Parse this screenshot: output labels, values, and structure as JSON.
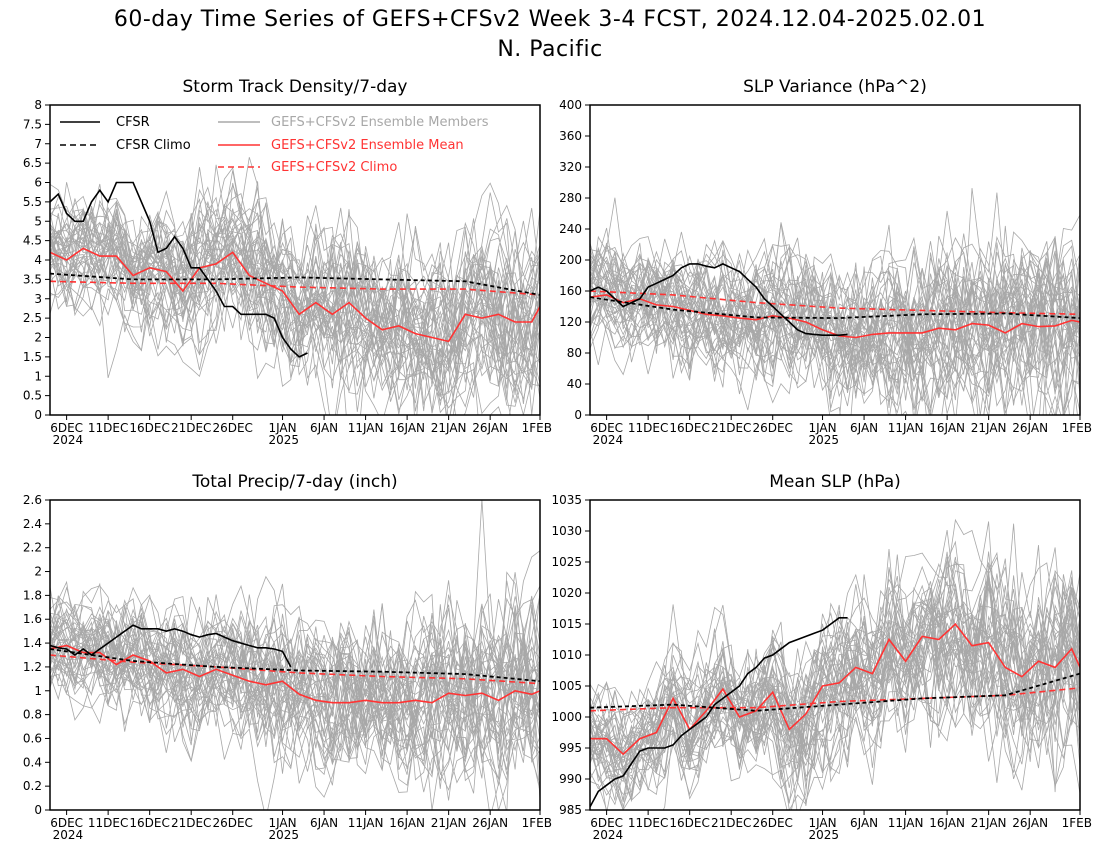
{
  "figure": {
    "title": "60-day Time Series of GEFS+CFSv2 Week 3-4 FCST, 2024.12.04-2025.02.01",
    "subtitle": "N. Pacific"
  },
  "colors": {
    "cfsr": "#000000",
    "members": "#a8a8a8",
    "ens_mean": "#ff3333"
  },
  "legend": {
    "cfsr": "CFSR",
    "cfsr_climo": "CFSR Climo",
    "members": "GEFS+CFSv2 Ensemble Members",
    "ens_mean": "GEFS+CFSv2 Ensemble Mean",
    "gefs_climo": "GEFS+CFSv2 Climo"
  },
  "x_axis": {
    "ticks": [
      {
        "day": 2,
        "label": "6DEC",
        "sub": "2024"
      },
      {
        "day": 7,
        "label": "11DEC",
        "sub": ""
      },
      {
        "day": 12,
        "label": "16DEC",
        "sub": ""
      },
      {
        "day": 17,
        "label": "21DEC",
        "sub": ""
      },
      {
        "day": 22,
        "label": "26DEC",
        "sub": ""
      },
      {
        "day": 28,
        "label": "1JAN",
        "sub": "2025"
      },
      {
        "day": 33,
        "label": "6JAN",
        "sub": ""
      },
      {
        "day": 38,
        "label": "11JAN",
        "sub": ""
      },
      {
        "day": 43,
        "label": "16JAN",
        "sub": ""
      },
      {
        "day": 48,
        "label": "21JAN",
        "sub": ""
      },
      {
        "day": 53,
        "label": "26JAN",
        "sub": ""
      },
      {
        "day": 59,
        "label": "1FEB",
        "sub": ""
      }
    ],
    "range": [
      0,
      59
    ]
  },
  "chart_data": [
    {
      "type": "line",
      "title": "Storm Track Density/7-day",
      "ylim": [
        0,
        8
      ],
      "yticks": [
        "0",
        "0.5",
        "1",
        "1.5",
        "2",
        "2.5",
        "3",
        "3.5",
        "4",
        "4.5",
        "5",
        "5.5",
        "6",
        "6.5",
        "7",
        "7.5",
        "8"
      ],
      "cfsr": {
        "x": [
          0,
          1,
          2,
          3,
          4,
          5,
          6,
          7,
          8,
          9,
          10,
          11,
          12,
          13,
          14,
          15,
          16,
          17,
          18,
          19,
          20,
          21,
          22,
          23,
          24,
          25,
          26,
          27,
          28,
          29,
          30,
          31
        ],
        "y": [
          5.5,
          5.7,
          5.2,
          5.0,
          5.0,
          5.5,
          5.8,
          5.5,
          6.0,
          6.0,
          6.0,
          5.5,
          5.0,
          4.2,
          4.3,
          4.6,
          4.3,
          3.8,
          3.8,
          3.5,
          3.2,
          2.8,
          2.8,
          2.6,
          2.6,
          2.6,
          2.6,
          2.5,
          2.0,
          1.7,
          1.5,
          1.6
        ]
      },
      "cfsr_climo": {
        "x": [
          0,
          10,
          20,
          30,
          40,
          50,
          59
        ],
        "y": [
          3.65,
          3.5,
          3.5,
          3.55,
          3.5,
          3.45,
          3.1
        ]
      },
      "ens_mean": {
        "x": [
          0,
          2,
          4,
          6,
          8,
          10,
          12,
          14,
          16,
          18,
          20,
          22,
          24,
          26,
          28,
          30,
          32,
          34,
          36,
          38,
          40,
          42,
          44,
          46,
          48,
          50,
          52,
          54,
          56,
          58,
          59
        ],
        "y": [
          4.2,
          4.0,
          4.3,
          4.1,
          4.1,
          3.6,
          3.8,
          3.7,
          3.2,
          3.8,
          3.9,
          4.2,
          3.6,
          3.4,
          3.2,
          2.6,
          2.9,
          2.6,
          2.9,
          2.5,
          2.2,
          2.3,
          2.1,
          2.0,
          1.9,
          2.6,
          2.5,
          2.6,
          2.4,
          2.4,
          2.8
        ]
      },
      "gefs_climo": {
        "x": [
          0,
          10,
          20,
          30,
          40,
          50,
          59
        ],
        "y": [
          3.45,
          3.4,
          3.4,
          3.3,
          3.25,
          3.25,
          3.1
        ]
      }
    },
    {
      "type": "line",
      "title": "SLP Variance (hPa^2)",
      "ylim": [
        0,
        400
      ],
      "yticks": [
        "0",
        "40",
        "80",
        "120",
        "160",
        "200",
        "240",
        "280",
        "320",
        "360",
        "400"
      ],
      "cfsr": {
        "x": [
          0,
          1,
          2,
          3,
          4,
          5,
          6,
          7,
          8,
          9,
          10,
          11,
          12,
          13,
          14,
          15,
          16,
          17,
          18,
          19,
          20,
          21,
          22,
          23,
          24,
          25,
          26,
          27,
          28,
          29,
          30,
          31
        ],
        "y": [
          160,
          165,
          160,
          150,
          140,
          145,
          150,
          165,
          170,
          175,
          180,
          190,
          195,
          195,
          192,
          190,
          195,
          190,
          185,
          175,
          165,
          150,
          140,
          130,
          120,
          110,
          105,
          104,
          103,
          103,
          103,
          104
        ]
      },
      "cfsr_climo": {
        "x": [
          0,
          10,
          20,
          30,
          40,
          50,
          59
        ],
        "y": [
          152,
          136,
          126,
          125,
          130,
          131,
          125
        ]
      },
      "ens_mean": {
        "x": [
          0,
          2,
          4,
          6,
          8,
          10,
          12,
          14,
          16,
          18,
          20,
          22,
          24,
          26,
          28,
          30,
          32,
          34,
          36,
          38,
          40,
          42,
          44,
          46,
          48,
          50,
          52,
          54,
          56,
          58,
          59
        ],
        "y": [
          152,
          155,
          145,
          150,
          142,
          140,
          135,
          130,
          128,
          125,
          123,
          128,
          125,
          120,
          110,
          102,
          100,
          104,
          106,
          106,
          106,
          112,
          110,
          118,
          116,
          106,
          118,
          114,
          115,
          122,
          120
        ]
      },
      "gefs_climo": {
        "x": [
          0,
          10,
          20,
          30,
          40,
          50,
          59
        ],
        "y": [
          160,
          155,
          145,
          138,
          135,
          132,
          130
        ]
      }
    },
    {
      "type": "line",
      "title": "Total Precip/7-day (inch)",
      "ylim": [
        0,
        2.6
      ],
      "yticks": [
        "0",
        "0.2",
        "0.4",
        "0.6",
        "0.8",
        "1",
        "1.2",
        "1.4",
        "1.6",
        "1.8",
        "2",
        "2.2",
        "2.4",
        "2.6"
      ],
      "cfsr": {
        "x": [
          0,
          1,
          2,
          3,
          4,
          5,
          6,
          7,
          8,
          9,
          10,
          11,
          12,
          13,
          14,
          15,
          16,
          17,
          18,
          19,
          20,
          21,
          22,
          23,
          24,
          25,
          26,
          27,
          28,
          29
        ],
        "y": [
          1.38,
          1.36,
          1.35,
          1.3,
          1.35,
          1.3,
          1.35,
          1.4,
          1.45,
          1.5,
          1.55,
          1.52,
          1.52,
          1.52,
          1.5,
          1.52,
          1.5,
          1.47,
          1.45,
          1.47,
          1.48,
          1.45,
          1.42,
          1.4,
          1.38,
          1.36,
          1.36,
          1.35,
          1.33,
          1.2
        ]
      },
      "cfsr_climo": {
        "x": [
          0,
          10,
          20,
          30,
          40,
          50,
          59
        ],
        "y": [
          1.35,
          1.25,
          1.2,
          1.17,
          1.16,
          1.14,
          1.08
        ]
      },
      "ens_mean": {
        "x": [
          0,
          2,
          4,
          6,
          8,
          10,
          12,
          14,
          16,
          18,
          20,
          22,
          24,
          26,
          28,
          30,
          32,
          34,
          36,
          38,
          40,
          42,
          44,
          46,
          48,
          50,
          52,
          54,
          56,
          58,
          59
        ],
        "y": [
          1.35,
          1.38,
          1.32,
          1.32,
          1.22,
          1.3,
          1.25,
          1.15,
          1.18,
          1.12,
          1.18,
          1.13,
          1.08,
          1.05,
          1.08,
          0.97,
          0.92,
          0.9,
          0.9,
          0.92,
          0.9,
          0.9,
          0.92,
          0.9,
          0.98,
          0.96,
          0.98,
          0.92,
          1.0,
          0.97,
          1.0
        ]
      },
      "gefs_climo": {
        "x": [
          0,
          10,
          20,
          30,
          40,
          50,
          59
        ],
        "y": [
          1.3,
          1.24,
          1.2,
          1.15,
          1.12,
          1.1,
          1.06
        ]
      }
    },
    {
      "type": "line",
      "title": "Mean SLP (hPa)",
      "ylim": [
        985,
        1035
      ],
      "yticks": [
        "985",
        "990",
        "995",
        "1000",
        "1005",
        "1010",
        "1015",
        "1020",
        "1025",
        "1030",
        "1035"
      ],
      "cfsr": {
        "x": [
          0,
          1,
          2,
          3,
          4,
          5,
          6,
          7,
          8,
          9,
          10,
          11,
          12,
          13,
          14,
          15,
          16,
          17,
          18,
          19,
          20,
          21,
          22,
          23,
          24,
          25,
          26,
          27,
          28,
          29,
          30,
          31
        ],
        "y": [
          985.5,
          988,
          989,
          990,
          990.5,
          992.5,
          994.5,
          995,
          995,
          995,
          995.5,
          997,
          998,
          999,
          1000,
          1002,
          1003,
          1004,
          1005,
          1007,
          1008,
          1009.5,
          1010,
          1011,
          1012,
          1012.5,
          1013,
          1013.5,
          1014,
          1015,
          1016,
          1016
        ]
      },
      "cfsr_climo": {
        "x": [
          0,
          10,
          20,
          30,
          40,
          50,
          59
        ],
        "y": [
          1001.5,
          1002,
          1001,
          1002,
          1003,
          1003.5,
          1007
        ]
      },
      "ens_mean": {
        "x": [
          0,
          2,
          4,
          6,
          8,
          10,
          12,
          14,
          16,
          18,
          20,
          22,
          24,
          26,
          28,
          30,
          32,
          34,
          36,
          38,
          40,
          42,
          44,
          46,
          48,
          50,
          52,
          54,
          56,
          58,
          59
        ],
        "y": [
          996.5,
          996.5,
          994,
          996.5,
          997.5,
          1003,
          998,
          1001,
          1004.5,
          1000,
          1001,
          1004,
          998,
          1000.5,
          1005,
          1005.5,
          1008,
          1007,
          1012.5,
          1009,
          1013,
          1012.5,
          1015,
          1011.5,
          1012,
          1008,
          1006.5,
          1009,
          1008,
          1011,
          1008
        ]
      },
      "gefs_climo": {
        "x": [
          0,
          10,
          20,
          30,
          40,
          50,
          59
        ],
        "y": [
          1001,
          1001.5,
          1001.5,
          1002.5,
          1003,
          1003.5,
          1004.7
        ]
      }
    }
  ]
}
